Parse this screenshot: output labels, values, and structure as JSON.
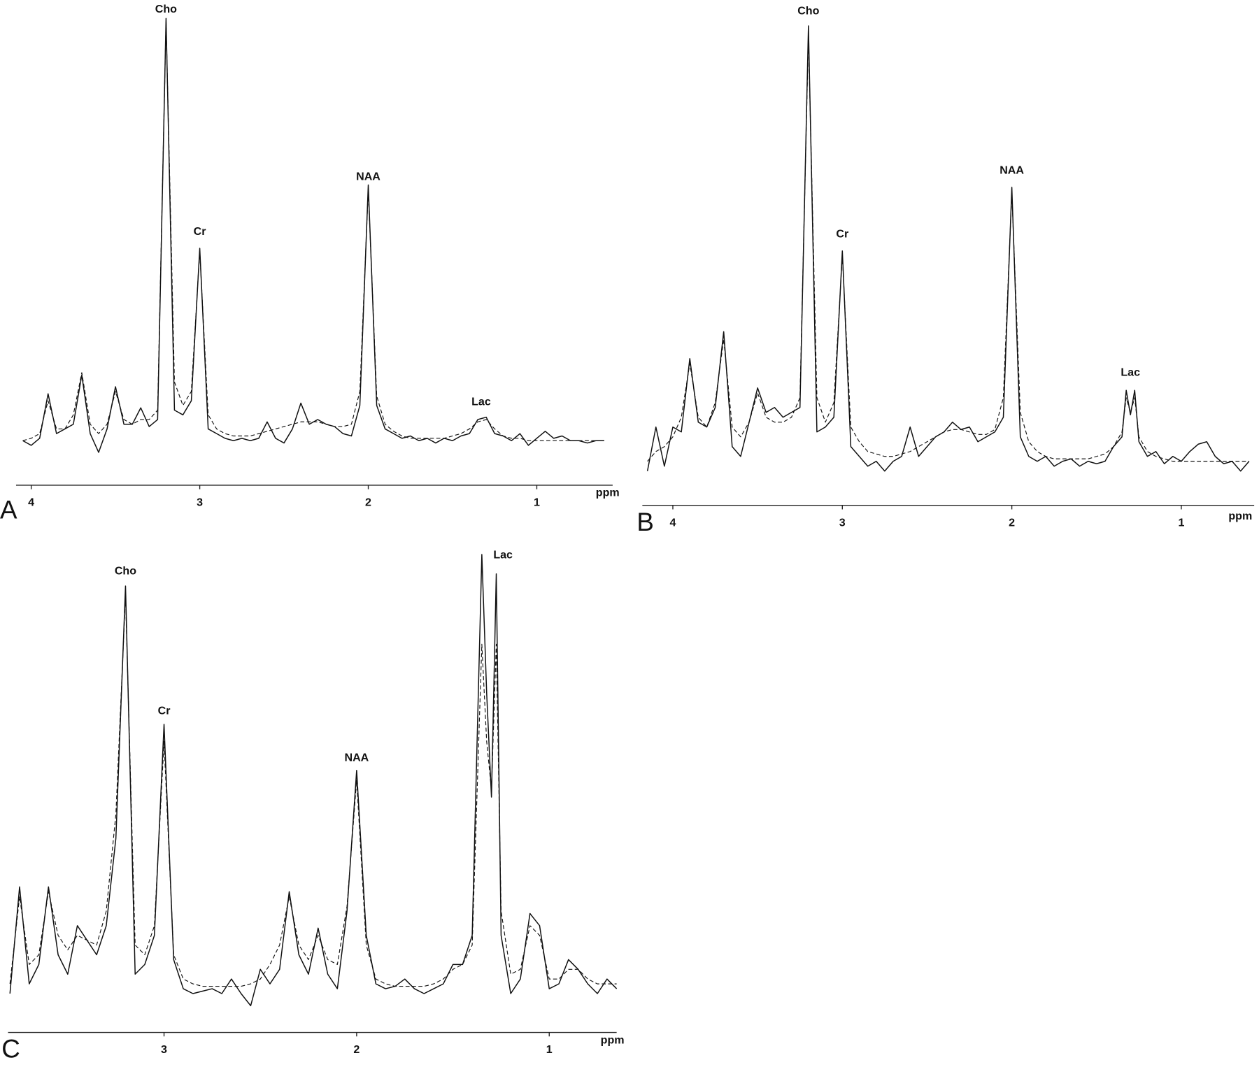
{
  "chart_data": [
    {
      "type": "line",
      "panel": "A",
      "xlabel": "ppm",
      "xlim": [
        4.09,
        0.55
      ],
      "xticks": [
        4,
        3,
        2,
        1
      ],
      "ylim": [
        0,
        100
      ],
      "x": [
        4.05,
        4.0,
        3.95,
        3.9,
        3.85,
        3.8,
        3.75,
        3.7,
        3.65,
        3.6,
        3.55,
        3.5,
        3.45,
        3.4,
        3.35,
        3.3,
        3.25,
        3.2,
        3.15,
        3.1,
        3.05,
        3.0,
        2.95,
        2.9,
        2.85,
        2.8,
        2.75,
        2.7,
        2.65,
        2.6,
        2.55,
        2.5,
        2.45,
        2.4,
        2.35,
        2.3,
        2.25,
        2.2,
        2.15,
        2.1,
        2.05,
        2.0,
        1.95,
        1.9,
        1.85,
        1.8,
        1.75,
        1.7,
        1.65,
        1.6,
        1.55,
        1.5,
        1.45,
        1.4,
        1.35,
        1.3,
        1.25,
        1.2,
        1.15,
        1.1,
        1.05,
        1.0,
        0.95,
        0.9,
        0.85,
        0.8,
        0.75,
        0.7,
        0.65,
        0.6
      ],
      "series": [
        {
          "color": "#111111",
          "dashed": false,
          "values": [
            9.5,
            8.5,
            10,
            19.5,
            11,
            12,
            13,
            23.5,
            11,
            7,
            12,
            21,
            13,
            13,
            16.5,
            12.5,
            14,
            99.5,
            16,
            15,
            18,
            50.5,
            12,
            11,
            10,
            9.5,
            10,
            9.5,
            10,
            13.5,
            10,
            9,
            12,
            17.5,
            13,
            14,
            13,
            12.5,
            11,
            10.5,
            17,
            64,
            17,
            12,
            11,
            10,
            10.5,
            9.5,
            10,
            9,
            10,
            9.5,
            10.5,
            11,
            14,
            14.5,
            11,
            10.5,
            9.5,
            11,
            8.5,
            10,
            11.5,
            10,
            10.5,
            9.5,
            9.5,
            9,
            9.5,
            9.5
          ]
        },
        {
          "color": "#111111",
          "dashed": true,
          "values": [
            9.5,
            10,
            11,
            18,
            12,
            12,
            15,
            24,
            13,
            11,
            13,
            20,
            14,
            13,
            14,
            14,
            16,
            99,
            22,
            17,
            20,
            50,
            15,
            12,
            11,
            10.5,
            10.5,
            10.5,
            11,
            11.5,
            12,
            12.5,
            13,
            13.5,
            13.5,
            13.5,
            13,
            12.5,
            12.5,
            13,
            20,
            63,
            19,
            13,
            11.5,
            10.5,
            10,
            10,
            10,
            10,
            10,
            10.5,
            11,
            12,
            13.5,
            14,
            12,
            10.5,
            10,
            10,
            9.5,
            9.5,
            9.5,
            9.5,
            9.5,
            9.5,
            9.5,
            9.5,
            9.5,
            9.5
          ]
        }
      ],
      "annotations": [
        {
          "text": "Cho",
          "x": 3.2,
          "y": 101.4
        },
        {
          "text": "Cr",
          "x": 3.0,
          "y": 54
        },
        {
          "text": "NAA",
          "x": 2.0,
          "y": 65.7
        },
        {
          "text": "Lac",
          "x": 1.33,
          "y": 17.7
        }
      ]
    },
    {
      "type": "line",
      "panel": "B",
      "xlabel": "ppm",
      "xlim": [
        4.18,
        0.57
      ],
      "xticks": [
        4,
        3,
        2,
        1
      ],
      "ylim": [
        0,
        100
      ],
      "x": [
        4.15,
        4.1,
        4.05,
        4.0,
        3.95,
        3.9,
        3.85,
        3.8,
        3.75,
        3.7,
        3.65,
        3.6,
        3.55,
        3.5,
        3.45,
        3.4,
        3.35,
        3.3,
        3.25,
        3.2,
        3.15,
        3.1,
        3.05,
        3.0,
        2.95,
        2.9,
        2.85,
        2.8,
        2.75,
        2.7,
        2.65,
        2.6,
        2.55,
        2.5,
        2.45,
        2.4,
        2.35,
        2.3,
        2.25,
        2.2,
        2.15,
        2.1,
        2.05,
        2.0,
        1.95,
        1.9,
        1.85,
        1.8,
        1.75,
        1.7,
        1.65,
        1.6,
        1.55,
        1.5,
        1.45,
        1.4,
        1.35,
        1.325,
        1.3,
        1.275,
        1.25,
        1.2,
        1.15,
        1.1,
        1.05,
        1.0,
        0.95,
        0.9,
        0.85,
        0.8,
        0.75,
        0.7,
        0.65,
        0.6
      ],
      "series": [
        {
          "color": "#111111",
          "dashed": false,
          "values": [
            7,
            16,
            8,
            16,
            15,
            30,
            17,
            16,
            20,
            35.5,
            12,
            10,
            17,
            24,
            19,
            20,
            18,
            19,
            20,
            98,
            15,
            16,
            18,
            52,
            12,
            10,
            8,
            9,
            7,
            9,
            10,
            16,
            10,
            12,
            14,
            15,
            17,
            15.5,
            16,
            13,
            14,
            15,
            18,
            65,
            14,
            10,
            9,
            10,
            8,
            9,
            9.5,
            8,
            9,
            8.5,
            9,
            12,
            14,
            23.5,
            18.5,
            23.5,
            13,
            10,
            11,
            8.5,
            10,
            9,
            11,
            12.5,
            13,
            10,
            8.5,
            9,
            7,
            9
          ]
        },
        {
          "color": "#111111",
          "dashed": true,
          "values": [
            9,
            11,
            12,
            14,
            18,
            29,
            18,
            16,
            21,
            34,
            16,
            14,
            17,
            23,
            18,
            17,
            17,
            18,
            22,
            96,
            22,
            17,
            21,
            51,
            16,
            13,
            11,
            10.5,
            10,
            10,
            10.5,
            11,
            12,
            13,
            14,
            15,
            15.5,
            15.5,
            15,
            14.5,
            14.5,
            15.5,
            22,
            64,
            19,
            13,
            11,
            10,
            9.5,
            9.5,
            9.5,
            9.5,
            9.5,
            10,
            10.5,
            12,
            15,
            22,
            19,
            22,
            14,
            11,
            10,
            9.5,
            9,
            9,
            9,
            9,
            9,
            9,
            9,
            9,
            9,
            9
          ]
        }
      ],
      "annotations": [
        {
          "text": "Cho",
          "x": 3.2,
          "y": 101
        },
        {
          "text": "Cr",
          "x": 3.0,
          "y": 55.4
        },
        {
          "text": "NAA",
          "x": 2.0,
          "y": 68.4
        },
        {
          "text": "Lac",
          "x": 1.3,
          "y": 27.1
        }
      ]
    },
    {
      "type": "line",
      "panel": "C",
      "xlabel": "ppm",
      "xlim": [
        3.81,
        0.65
      ],
      "xticks": [
        3,
        2,
        1
      ],
      "ylim": [
        0,
        100
      ],
      "x": [
        3.8,
        3.75,
        3.7,
        3.65,
        3.6,
        3.55,
        3.5,
        3.45,
        3.4,
        3.35,
        3.3,
        3.25,
        3.2,
        3.15,
        3.1,
        3.05,
        3.0,
        2.95,
        2.9,
        2.85,
        2.8,
        2.75,
        2.7,
        2.65,
        2.6,
        2.55,
        2.5,
        2.45,
        2.4,
        2.35,
        2.3,
        2.25,
        2.2,
        2.15,
        2.1,
        2.05,
        2.0,
        1.95,
        1.9,
        1.85,
        1.8,
        1.75,
        1.7,
        1.65,
        1.6,
        1.55,
        1.5,
        1.45,
        1.4,
        1.35,
        1.325,
        1.3,
        1.275,
        1.25,
        1.2,
        1.15,
        1.1,
        1.05,
        1.0,
        0.95,
        0.9,
        0.85,
        0.8,
        0.75,
        0.7,
        0.65
      ],
      "series": [
        {
          "color": "#111111",
          "dashed": false,
          "values": [
            8,
            30,
            10,
            14,
            30,
            16,
            12,
            22,
            19,
            16,
            22,
            40,
            92,
            12,
            14,
            20,
            63.5,
            15,
            9,
            8,
            8.5,
            9,
            8,
            11,
            8,
            5.5,
            13,
            10,
            13,
            29,
            16,
            12,
            21.5,
            12,
            9,
            25,
            54,
            20,
            10,
            9,
            9.5,
            11,
            9,
            8,
            9,
            10,
            14,
            14,
            20,
            98.5,
            70,
            48.5,
            94.5,
            20,
            8,
            11,
            24.5,
            22,
            9,
            10,
            15,
            13,
            10,
            8,
            11,
            9
          ]
        },
        {
          "color": "#111111",
          "dashed": true,
          "values": [
            10,
            28,
            14,
            16,
            29,
            20,
            17,
            20,
            19,
            18,
            25,
            45,
            90,
            18,
            16,
            22,
            60,
            16,
            11,
            10,
            9.5,
            9.5,
            9.5,
            9.5,
            9.5,
            10,
            11,
            14,
            18,
            28,
            18,
            15,
            20,
            15,
            14,
            26,
            52,
            18,
            11,
            10,
            9.5,
            9.5,
            9.5,
            9.5,
            10,
            11,
            13,
            14,
            18,
            80,
            60,
            50,
            80,
            25,
            12,
            13,
            22,
            20,
            11,
            11,
            13,
            13,
            11,
            10,
            10,
            10
          ]
        }
      ],
      "annotations": [
        {
          "text": "Cho",
          "x": 3.2,
          "y": 95
        },
        {
          "text": "Cr",
          "x": 3.0,
          "y": 66.2
        },
        {
          "text": "NAA",
          "x": 2.0,
          "y": 56.5
        },
        {
          "text": "Lac",
          "x": 1.24,
          "y": 98.3
        }
      ]
    }
  ]
}
